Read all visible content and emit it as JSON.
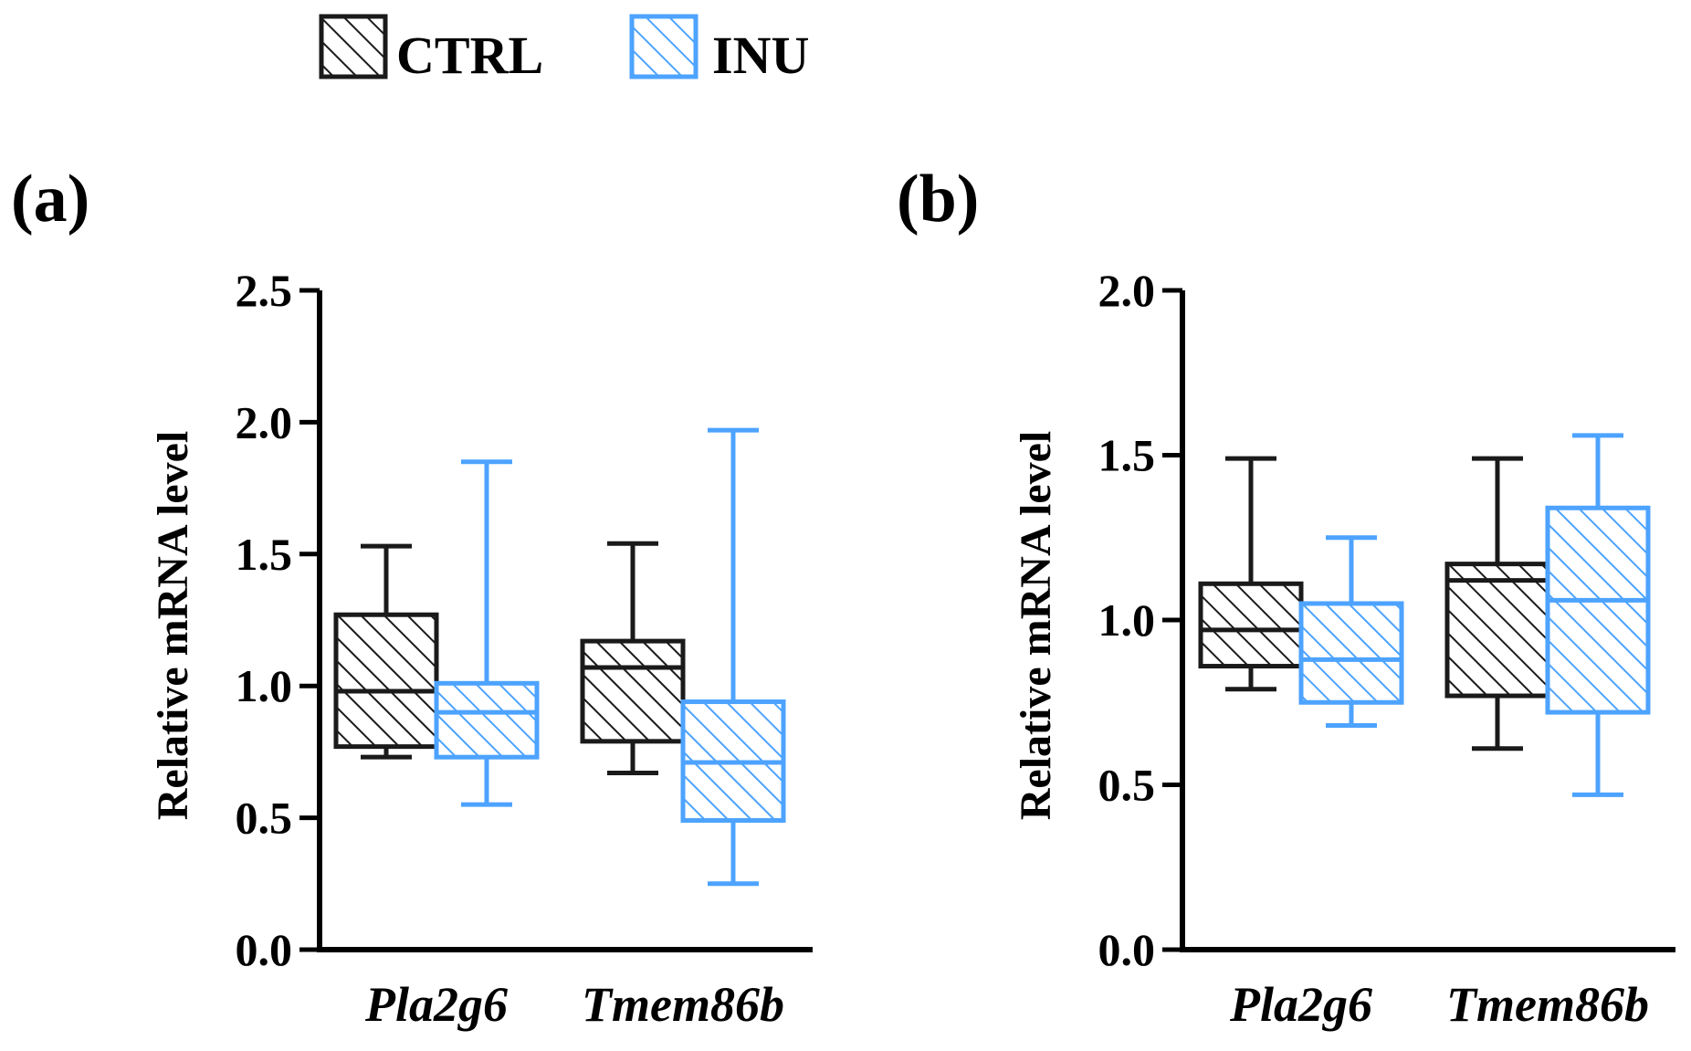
{
  "legend": [
    {
      "label": "CTRL",
      "color": "#1a1a1a"
    },
    {
      "label": "INU",
      "color": "#4da3ff"
    }
  ],
  "chart_data": [
    {
      "type": "box",
      "panel": "(a)",
      "ylabel": "Relative mRNA level",
      "ylim": [
        0,
        2.5
      ],
      "yticks": [
        "0.0",
        "0.5",
        "1.0",
        "1.5",
        "2.0",
        "2.5"
      ],
      "categories": [
        "Pla2g6",
        "Tmem86b"
      ],
      "series": [
        {
          "name": "CTRL",
          "boxes": [
            {
              "min": 0.73,
              "q1": 0.77,
              "median": 0.98,
              "q3": 1.27,
              "max": 1.53
            },
            {
              "min": 0.67,
              "q1": 0.79,
              "median": 1.07,
              "q3": 1.17,
              "max": 1.54
            }
          ]
        },
        {
          "name": "INU",
          "boxes": [
            {
              "min": 0.55,
              "q1": 0.73,
              "median": 0.9,
              "q3": 1.01,
              "max": 1.85
            },
            {
              "min": 0.25,
              "q1": 0.49,
              "median": 0.71,
              "q3": 0.94,
              "max": 1.97
            }
          ]
        }
      ]
    },
    {
      "type": "box",
      "panel": "(b)",
      "ylabel": "Relative mRNA level",
      "ylim": [
        0,
        2.0
      ],
      "yticks": [
        "0.0",
        "0.5",
        "1.0",
        "1.5",
        "2.0"
      ],
      "categories": [
        "Pla2g6",
        "Tmem86b"
      ],
      "series": [
        {
          "name": "CTRL",
          "boxes": [
            {
              "min": 0.79,
              "q1": 0.86,
              "median": 0.97,
              "q3": 1.11,
              "max": 1.49
            },
            {
              "min": 0.61,
              "q1": 0.77,
              "median": 1.12,
              "q3": 1.17,
              "max": 1.49
            }
          ]
        },
        {
          "name": "INU",
          "boxes": [
            {
              "min": 0.68,
              "q1": 0.75,
              "median": 0.88,
              "q3": 1.05,
              "max": 1.25
            },
            {
              "min": 0.47,
              "q1": 0.72,
              "median": 1.06,
              "q3": 1.34,
              "max": 1.56
            }
          ]
        }
      ]
    }
  ]
}
